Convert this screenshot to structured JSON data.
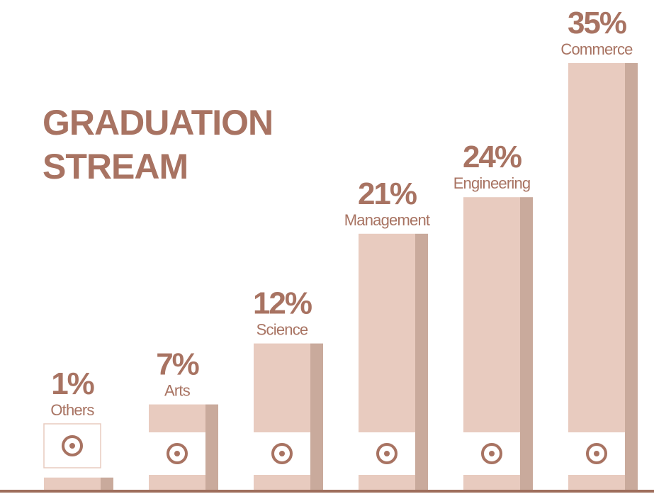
{
  "chart_data": {
    "type": "bar",
    "title": "GRADUATION STREAM",
    "categories": [
      "Others",
      "Arts",
      "Science",
      "Management",
      "Engineering",
      "Commerce"
    ],
    "values": [
      1,
      7,
      12,
      21,
      24,
      35
    ],
    "value_labels": [
      "1%",
      "7%",
      "12%",
      "21%",
      "24%",
      "35%"
    ],
    "color": "#e8cbbf"
  }
}
